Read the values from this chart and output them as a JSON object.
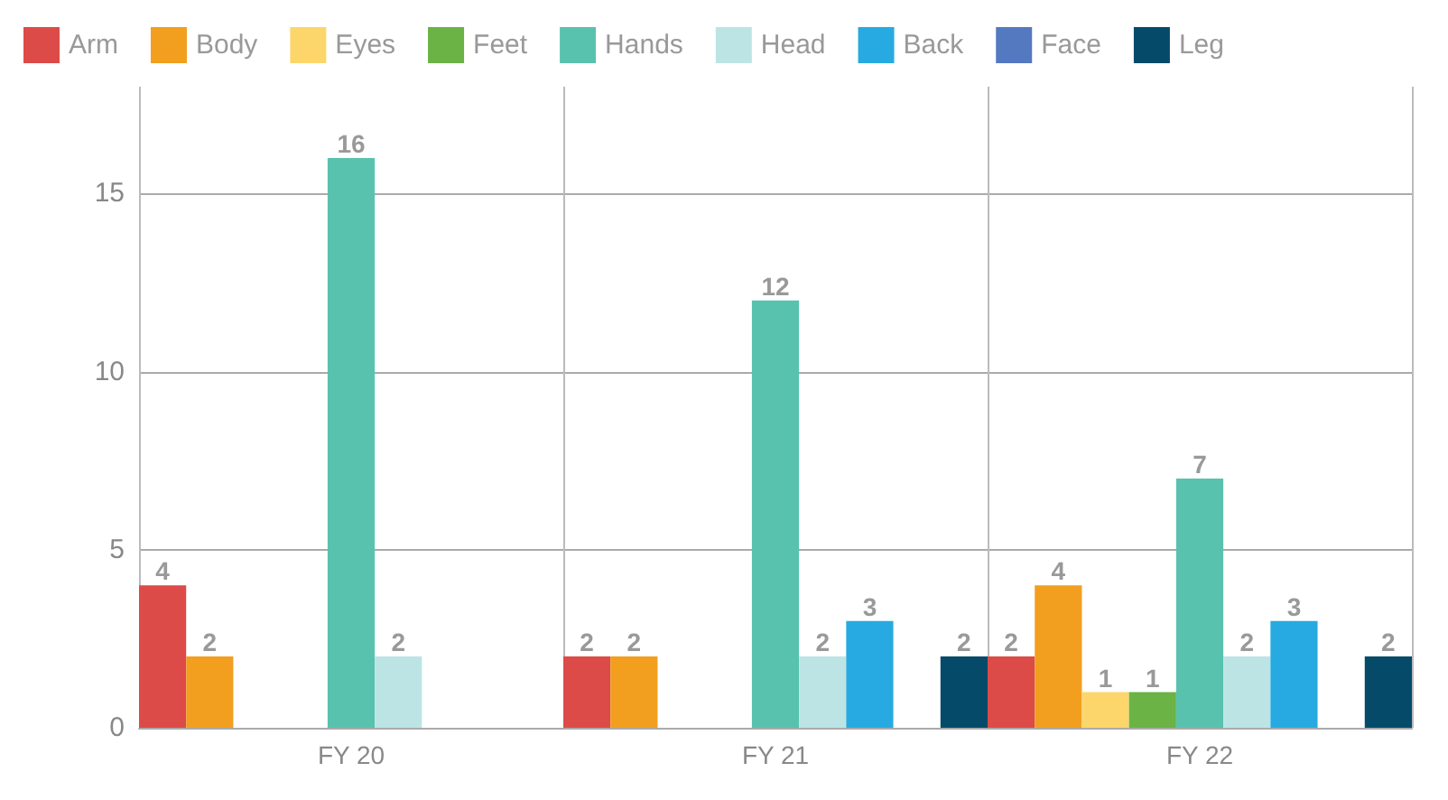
{
  "chart_data": {
    "type": "bar",
    "categories": [
      "FY 20",
      "FY 21",
      "FY 22"
    ],
    "series": [
      {
        "name": "Arm",
        "color": "#dc4b47",
        "values": [
          4,
          2,
          2
        ]
      },
      {
        "name": "Body",
        "color": "#f29f1f",
        "values": [
          2,
          2,
          4
        ]
      },
      {
        "name": "Eyes",
        "color": "#fdd66b",
        "values": [
          null,
          null,
          1
        ]
      },
      {
        "name": "Feet",
        "color": "#6ab344",
        "values": [
          null,
          null,
          1
        ]
      },
      {
        "name": "Hands",
        "color": "#59c2ae",
        "values": [
          16,
          12,
          7
        ]
      },
      {
        "name": "Head",
        "color": "#bde4e4",
        "values": [
          2,
          2,
          2
        ]
      },
      {
        "name": "Back",
        "color": "#27aae1",
        "values": [
          null,
          3,
          3
        ]
      },
      {
        "name": "Face",
        "color": "#5479c1",
        "values": [
          null,
          null,
          null
        ]
      },
      {
        "name": "Leg",
        "color": "#064a6a",
        "values": [
          null,
          2,
          2
        ]
      }
    ],
    "ylim": [
      0,
      18
    ],
    "yticks": [
      0,
      5,
      10,
      15
    ],
    "grid": true,
    "legend": "top left",
    "data_labels": true
  }
}
